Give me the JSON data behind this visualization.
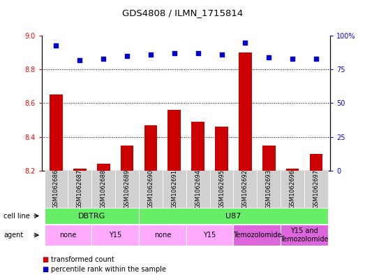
{
  "title": "GDS4808 / ILMN_1715814",
  "samples": [
    "GSM1062686",
    "GSM1062687",
    "GSM1062688",
    "GSM1062689",
    "GSM1062690",
    "GSM1062691",
    "GSM1062694",
    "GSM1062695",
    "GSM1062692",
    "GSM1062693",
    "GSM1062696",
    "GSM1062697"
  ],
  "transformed_counts": [
    8.65,
    8.21,
    8.24,
    8.35,
    8.47,
    8.56,
    8.49,
    8.46,
    8.9,
    8.35,
    8.21,
    8.3
  ],
  "percentile_ranks": [
    93,
    82,
    83,
    85,
    86,
    87,
    87,
    86,
    95,
    84,
    83,
    83
  ],
  "ylim_left": [
    8.2,
    9.0
  ],
  "ylim_right": [
    0,
    100
  ],
  "yticks_left": [
    8.2,
    8.4,
    8.6,
    8.8,
    9.0
  ],
  "yticks_right": [
    0,
    25,
    50,
    75,
    100
  ],
  "ytick_labels_right": [
    "0",
    "25",
    "50",
    "75",
    "100%"
  ],
  "grid_values": [
    8.4,
    8.6,
    8.8
  ],
  "bar_color": "#cc0000",
  "dot_color": "#0000cc",
  "cell_line_label": "cell line",
  "agent_label": "agent",
  "legend_bar": "transformed count",
  "legend_dot": "percentile rank within the sample",
  "background_color": "#ffffff",
  "cell_color": "#66ee66",
  "agent_color_light": "#ffaaff",
  "agent_color_dark": "#dd66dd",
  "tick_bg_color": "#d0d0d0",
  "cell_spans": [
    {
      "label": "DBTRG",
      "i0": 0,
      "i1": 3
    },
    {
      "label": "U87",
      "i0": 4,
      "i1": 11
    }
  ],
  "agent_spans": [
    {
      "label": "none",
      "i0": 0,
      "i1": 1,
      "dark": false
    },
    {
      "label": "Y15",
      "i0": 2,
      "i1": 3,
      "dark": false
    },
    {
      "label": "none",
      "i0": 4,
      "i1": 5,
      "dark": false
    },
    {
      "label": "Y15",
      "i0": 6,
      "i1": 7,
      "dark": false
    },
    {
      "label": "Temozolomide",
      "i0": 8,
      "i1": 9,
      "dark": true
    },
    {
      "label": "Y15 and\nTemozolomide",
      "i0": 10,
      "i1": 11,
      "dark": true
    }
  ]
}
